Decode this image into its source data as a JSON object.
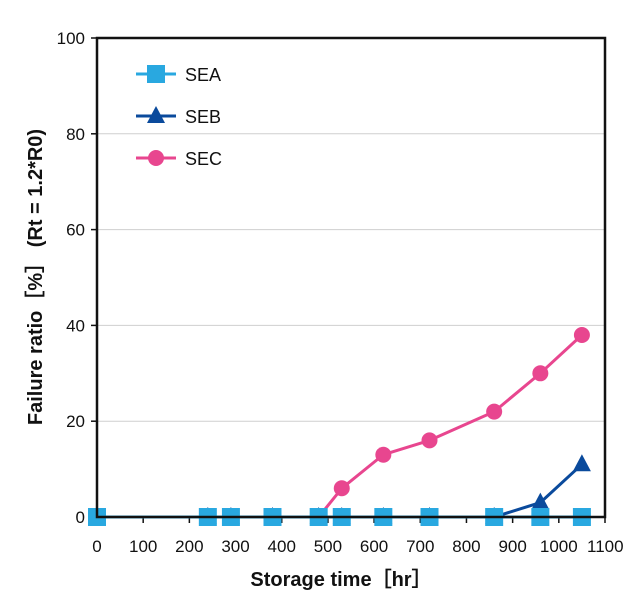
{
  "chart_data": {
    "type": "line",
    "title": "",
    "xlabel": "Storage time［hr］",
    "ylabel": "Failure ratio［%］ (Rt = 1.2*R0)",
    "xlim": [
      0,
      1100
    ],
    "ylim": [
      0,
      100
    ],
    "xticks": [
      0,
      100,
      200,
      300,
      400,
      500,
      600,
      700,
      800,
      900,
      1000,
      1100
    ],
    "yticks": [
      0,
      20,
      40,
      60,
      80,
      100
    ],
    "grid": "horizontal",
    "legend_position": "top-left",
    "series": [
      {
        "name": "SEA",
        "marker": "square",
        "color": "#29a8e0",
        "x": [
          0,
          240,
          290,
          380,
          480,
          530,
          620,
          720,
          860,
          960,
          1050
        ],
        "y": [
          0,
          0,
          0,
          0,
          0,
          0,
          0,
          0,
          0,
          0,
          0
        ]
      },
      {
        "name": "SEB",
        "marker": "triangle",
        "color": "#0a4a9c",
        "x": [
          0,
          240,
          290,
          380,
          480,
          530,
          620,
          720,
          860,
          960,
          1050
        ],
        "y": [
          0,
          0,
          0,
          0,
          0,
          0,
          0,
          0,
          0,
          3,
          11
        ]
      },
      {
        "name": "SEC",
        "marker": "circle",
        "color": "#e8468f",
        "x": [
          0,
          240,
          290,
          380,
          480,
          530,
          620,
          720,
          860,
          960,
          1050
        ],
        "y": [
          0,
          0,
          0,
          0,
          0,
          6,
          13,
          16,
          22,
          30,
          38
        ]
      }
    ]
  }
}
